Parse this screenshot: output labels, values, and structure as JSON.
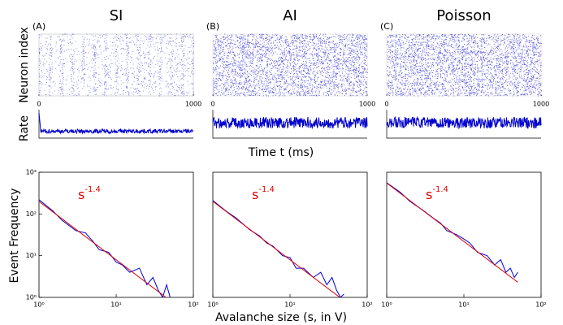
{
  "labels": {
    "neuron_index": "Neuron index",
    "rate": "Rate",
    "time": "Time t (ms)",
    "event_frequency": "Event Frequency",
    "avalanche_size": "Avalanche size (s, in V)"
  },
  "chart_data": [
    {
      "type": "line",
      "title": "SI",
      "panel_label": "(A)",
      "raster_xlim": [
        0,
        1000
      ],
      "raster_xticks": [
        0,
        1000
      ],
      "log_scale": true,
      "xlim": [
        1,
        100
      ],
      "ylim": [
        1,
        1000
      ],
      "xticks": [
        {
          "value": 1,
          "label": "10⁰"
        },
        {
          "value": 10,
          "label": "10¹"
        },
        {
          "value": 100,
          "label": "10²"
        }
      ],
      "yticks": [
        {
          "value": 1,
          "label": "10⁰"
        },
        {
          "value": 10,
          "label": "10¹"
        },
        {
          "value": 100,
          "label": "10²"
        },
        {
          "value": 1000,
          "label": "10³"
        }
      ],
      "annotation": {
        "base": "s",
        "exponent": "-1.4"
      },
      "series": [
        {
          "color": "#0000dd",
          "x": [
            1,
            1.5,
            2,
            3,
            4,
            5,
            6,
            8,
            10,
            12,
            15,
            20,
            25,
            30,
            35,
            40,
            45,
            50
          ],
          "values": [
            220,
            120,
            70,
            40,
            35,
            22,
            14,
            12,
            7,
            6,
            4,
            5,
            2,
            3,
            1.5,
            1,
            2,
            1
          ]
        },
        {
          "color": "#dd0000",
          "x": [
            1,
            50
          ],
          "values": [
            200,
            0.84
          ]
        }
      ]
    },
    {
      "type": "line",
      "title": "AI",
      "panel_label": "(B)",
      "raster_xlim": [
        0,
        1000
      ],
      "raster_xticks": [
        0,
        1000
      ],
      "log_scale": true,
      "xlim": [
        1,
        100
      ],
      "ylim": [
        1,
        1000
      ],
      "xticks": [
        {
          "value": 1,
          "label": "10⁰"
        },
        {
          "value": 10,
          "label": "10¹"
        },
        {
          "value": 100,
          "label": "10²"
        }
      ],
      "annotation": {
        "base": "s",
        "exponent": "-1.4"
      },
      "series": [
        {
          "color": "#0000dd",
          "x": [
            1,
            1.5,
            2,
            3,
            4,
            5,
            6,
            8,
            10,
            12,
            15,
            20,
            25,
            30,
            35,
            40,
            45,
            50
          ],
          "values": [
            210,
            115,
            80,
            42,
            30,
            20,
            17,
            10,
            9,
            5,
            5,
            3,
            4,
            2,
            3,
            1.5,
            1,
            1.2
          ]
        },
        {
          "color": "#dd0000",
          "x": [
            1,
            50
          ],
          "values": [
            200,
            0.84
          ]
        }
      ]
    },
    {
      "type": "line",
      "title": "Poisson",
      "panel_label": "(C)",
      "raster_xlim": [
        0,
        1000
      ],
      "raster_xticks": [
        0,
        1000
      ],
      "log_scale": true,
      "xlim": [
        1,
        100
      ],
      "ylim": [
        1,
        1000
      ],
      "xticks": [
        {
          "value": 1,
          "label": "10⁰"
        },
        {
          "value": 10,
          "label": "10¹"
        },
        {
          "value": 100,
          "label": "10²"
        }
      ],
      "annotation": {
        "base": "s",
        "exponent": "-1.4"
      },
      "series": [
        {
          "color": "#0000dd",
          "x": [
            1,
            1.5,
            2,
            3,
            4,
            5,
            6,
            8,
            10,
            12,
            15,
            20,
            25,
            30,
            35,
            40,
            45,
            50
          ],
          "values": [
            560,
            330,
            200,
            120,
            80,
            60,
            40,
            32,
            25,
            20,
            12,
            10,
            6,
            8,
            4,
            5,
            3,
            4
          ]
        },
        {
          "color": "#dd0000",
          "x": [
            1,
            50
          ],
          "values": [
            550,
            2.3
          ]
        }
      ]
    }
  ]
}
